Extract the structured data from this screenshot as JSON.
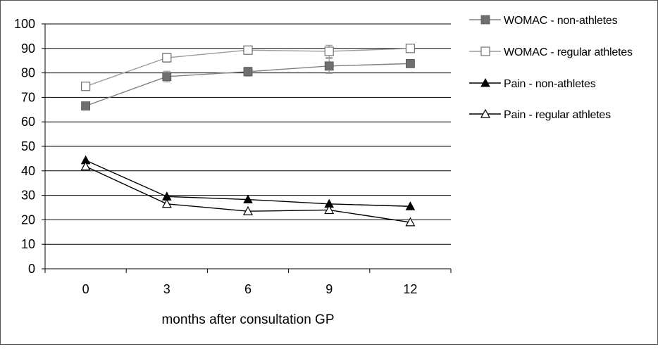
{
  "chart_data": {
    "type": "line",
    "title": "",
    "xlabel": "months after consultation GP",
    "ylabel": "",
    "x": [
      0,
      3,
      6,
      9,
      12
    ],
    "x_ticks": [
      "0",
      "3",
      "6",
      "9",
      "12"
    ],
    "ylim": [
      0,
      100
    ],
    "y_ticks": [
      "0",
      "10",
      "20",
      "30",
      "40",
      "50",
      "60",
      "70",
      "80",
      "90",
      "100"
    ],
    "grid": true,
    "legend_position": "right",
    "series": [
      {
        "name": "WOMAC - non-athletes",
        "marker": "filled-square",
        "color": "#808080",
        "markerColor": "#6f6f6f",
        "values": [
          66.5,
          78.5,
          80.5,
          82.8,
          83.8
        ],
        "err": [
          1.5,
          2.2,
          1.8,
          3.0,
          1.5
        ]
      },
      {
        "name": "WOMAC - regular athletes",
        "marker": "open-square",
        "color": "#9a9a9a",
        "markerColor": "#6f6f6f",
        "values": [
          74.5,
          86.2,
          89.3,
          88.8,
          90.0
        ],
        "err": [
          1.5,
          1.8,
          1.5,
          2.5,
          1.0
        ]
      },
      {
        "name": "Pain - non-athletes",
        "marker": "filled-triangle",
        "color": "#000000",
        "markerColor": "#000000",
        "values": [
          44.3,
          29.5,
          28.3,
          26.5,
          25.5
        ],
        "err": []
      },
      {
        "name": "Pain - regular athletes",
        "marker": "open-triangle",
        "color": "#000000",
        "markerColor": "#000000",
        "values": [
          41.8,
          26.5,
          23.5,
          24.0,
          19.0
        ],
        "err": []
      }
    ]
  }
}
